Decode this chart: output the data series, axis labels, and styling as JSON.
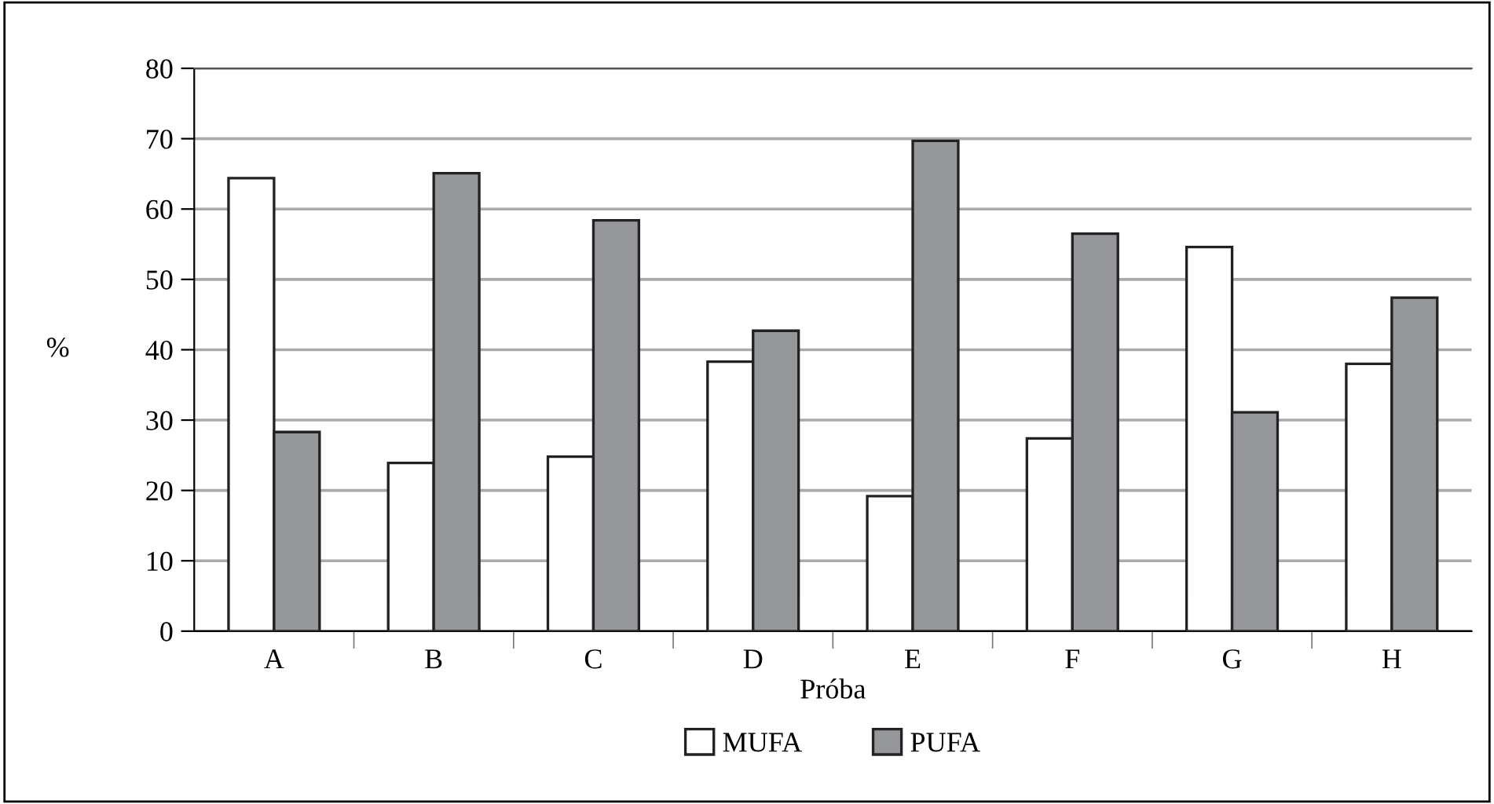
{
  "chart_data": {
    "type": "bar",
    "xlabel": "Próba",
    "ylabel": "%",
    "categories": [
      "A",
      "B",
      "C",
      "D",
      "E",
      "F",
      "G",
      "H"
    ],
    "series": [
      {
        "name": "MUFA",
        "color": "#ffffff",
        "values": [
          64.4,
          23.9,
          24.8,
          38.3,
          19.2,
          27.4,
          54.6,
          38.0
        ]
      },
      {
        "name": "PUFA",
        "color": "#96979b",
        "values": [
          28.3,
          65.1,
          58.4,
          42.7,
          69.7,
          56.5,
          31.1,
          47.4
        ]
      }
    ],
    "ylim": [
      0,
      80
    ],
    "yticks": [
      0,
      10,
      20,
      30,
      40,
      50,
      60,
      70,
      80
    ],
    "grid": "y",
    "legend": "bottom"
  }
}
